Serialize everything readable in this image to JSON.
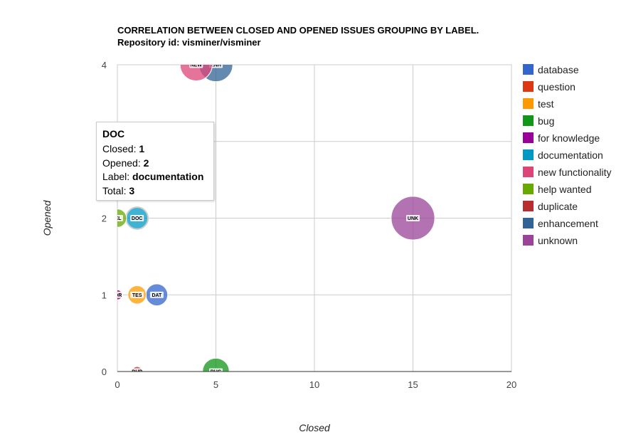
{
  "chart_data": {
    "type": "bubble",
    "title": [
      "CORRELATION BETWEEN CLOSED AND OPENED ISSUES GROUPING BY LABEL.",
      "Repository id: visminer/visminer"
    ],
    "xlabel": "Closed",
    "ylabel": "Opened",
    "xlim": [
      0,
      20
    ],
    "ylim": [
      0,
      4
    ],
    "x_ticks": [
      "0",
      "5",
      "10",
      "15",
      "20"
    ],
    "y_ticks": [
      "0",
      "1",
      "2",
      "4"
    ],
    "grid": true,
    "legend_position": "right",
    "series": [
      {
        "name": "database",
        "color": "#3366cc"
      },
      {
        "name": "question",
        "color": "#dc3912"
      },
      {
        "name": "test",
        "color": "#ff9900"
      },
      {
        "name": "bug",
        "color": "#109618"
      },
      {
        "name": "for knowledge",
        "color": "#990099"
      },
      {
        "name": "documentation",
        "color": "#0099c6"
      },
      {
        "name": "new functionality",
        "color": "#dd4477"
      },
      {
        "name": "help wanted",
        "color": "#66aa00"
      },
      {
        "name": "duplicate",
        "color": "#b82e2e"
      },
      {
        "name": "enhancement",
        "color": "#316395"
      },
      {
        "name": "unknown",
        "color": "#994499"
      }
    ],
    "points": [
      {
        "id": "DAT",
        "label": "database",
        "x": 2,
        "y": 1,
        "size": 3
      },
      {
        "id": "QUE",
        "label": "question",
        "x": 0,
        "y": 1,
        "size": 1
      },
      {
        "id": "TES",
        "label": "test",
        "x": 1,
        "y": 1,
        "size": 2
      },
      {
        "id": "BUG",
        "label": "bug",
        "x": 5,
        "y": 0,
        "size": 5
      },
      {
        "id": "FOR",
        "label": "for knowledge",
        "x": 0,
        "y": 1,
        "size": 1
      },
      {
        "id": "DOC",
        "label": "documentation",
        "x": 1,
        "y": 2,
        "size": 3
      },
      {
        "id": "NEW",
        "label": "new functionality",
        "x": 4,
        "y": 4,
        "size": 8
      },
      {
        "id": "HEL",
        "label": "help wanted",
        "x": 0,
        "y": 2,
        "size": 2
      },
      {
        "id": "DUP",
        "label": "duplicate",
        "x": 1,
        "y": 0,
        "size": 1
      },
      {
        "id": "ENH",
        "label": "enhancement",
        "x": 5,
        "y": 4,
        "size": 9
      },
      {
        "id": "UNK",
        "label": "unknown",
        "x": 15,
        "y": 2,
        "size": 17
      }
    ],
    "visible_point_labels": {
      "DAT": "DAT",
      "TES": "TES",
      "FOR": "OR",
      "BUG": "BUG",
      "DOC": "DOC",
      "HEL": "EL",
      "UNK": "UNK",
      "NEW": "NEW",
      "ENH": "ENH",
      "DUP": "DUP"
    }
  },
  "tooltip": {
    "title": "DOC",
    "closed_label": "Closed:",
    "closed_value": "1",
    "opened_label": "Opened:",
    "opened_value": "2",
    "label_label": "Label:",
    "label_value": "documentation",
    "total_label": "Total:",
    "total_value": "3"
  }
}
